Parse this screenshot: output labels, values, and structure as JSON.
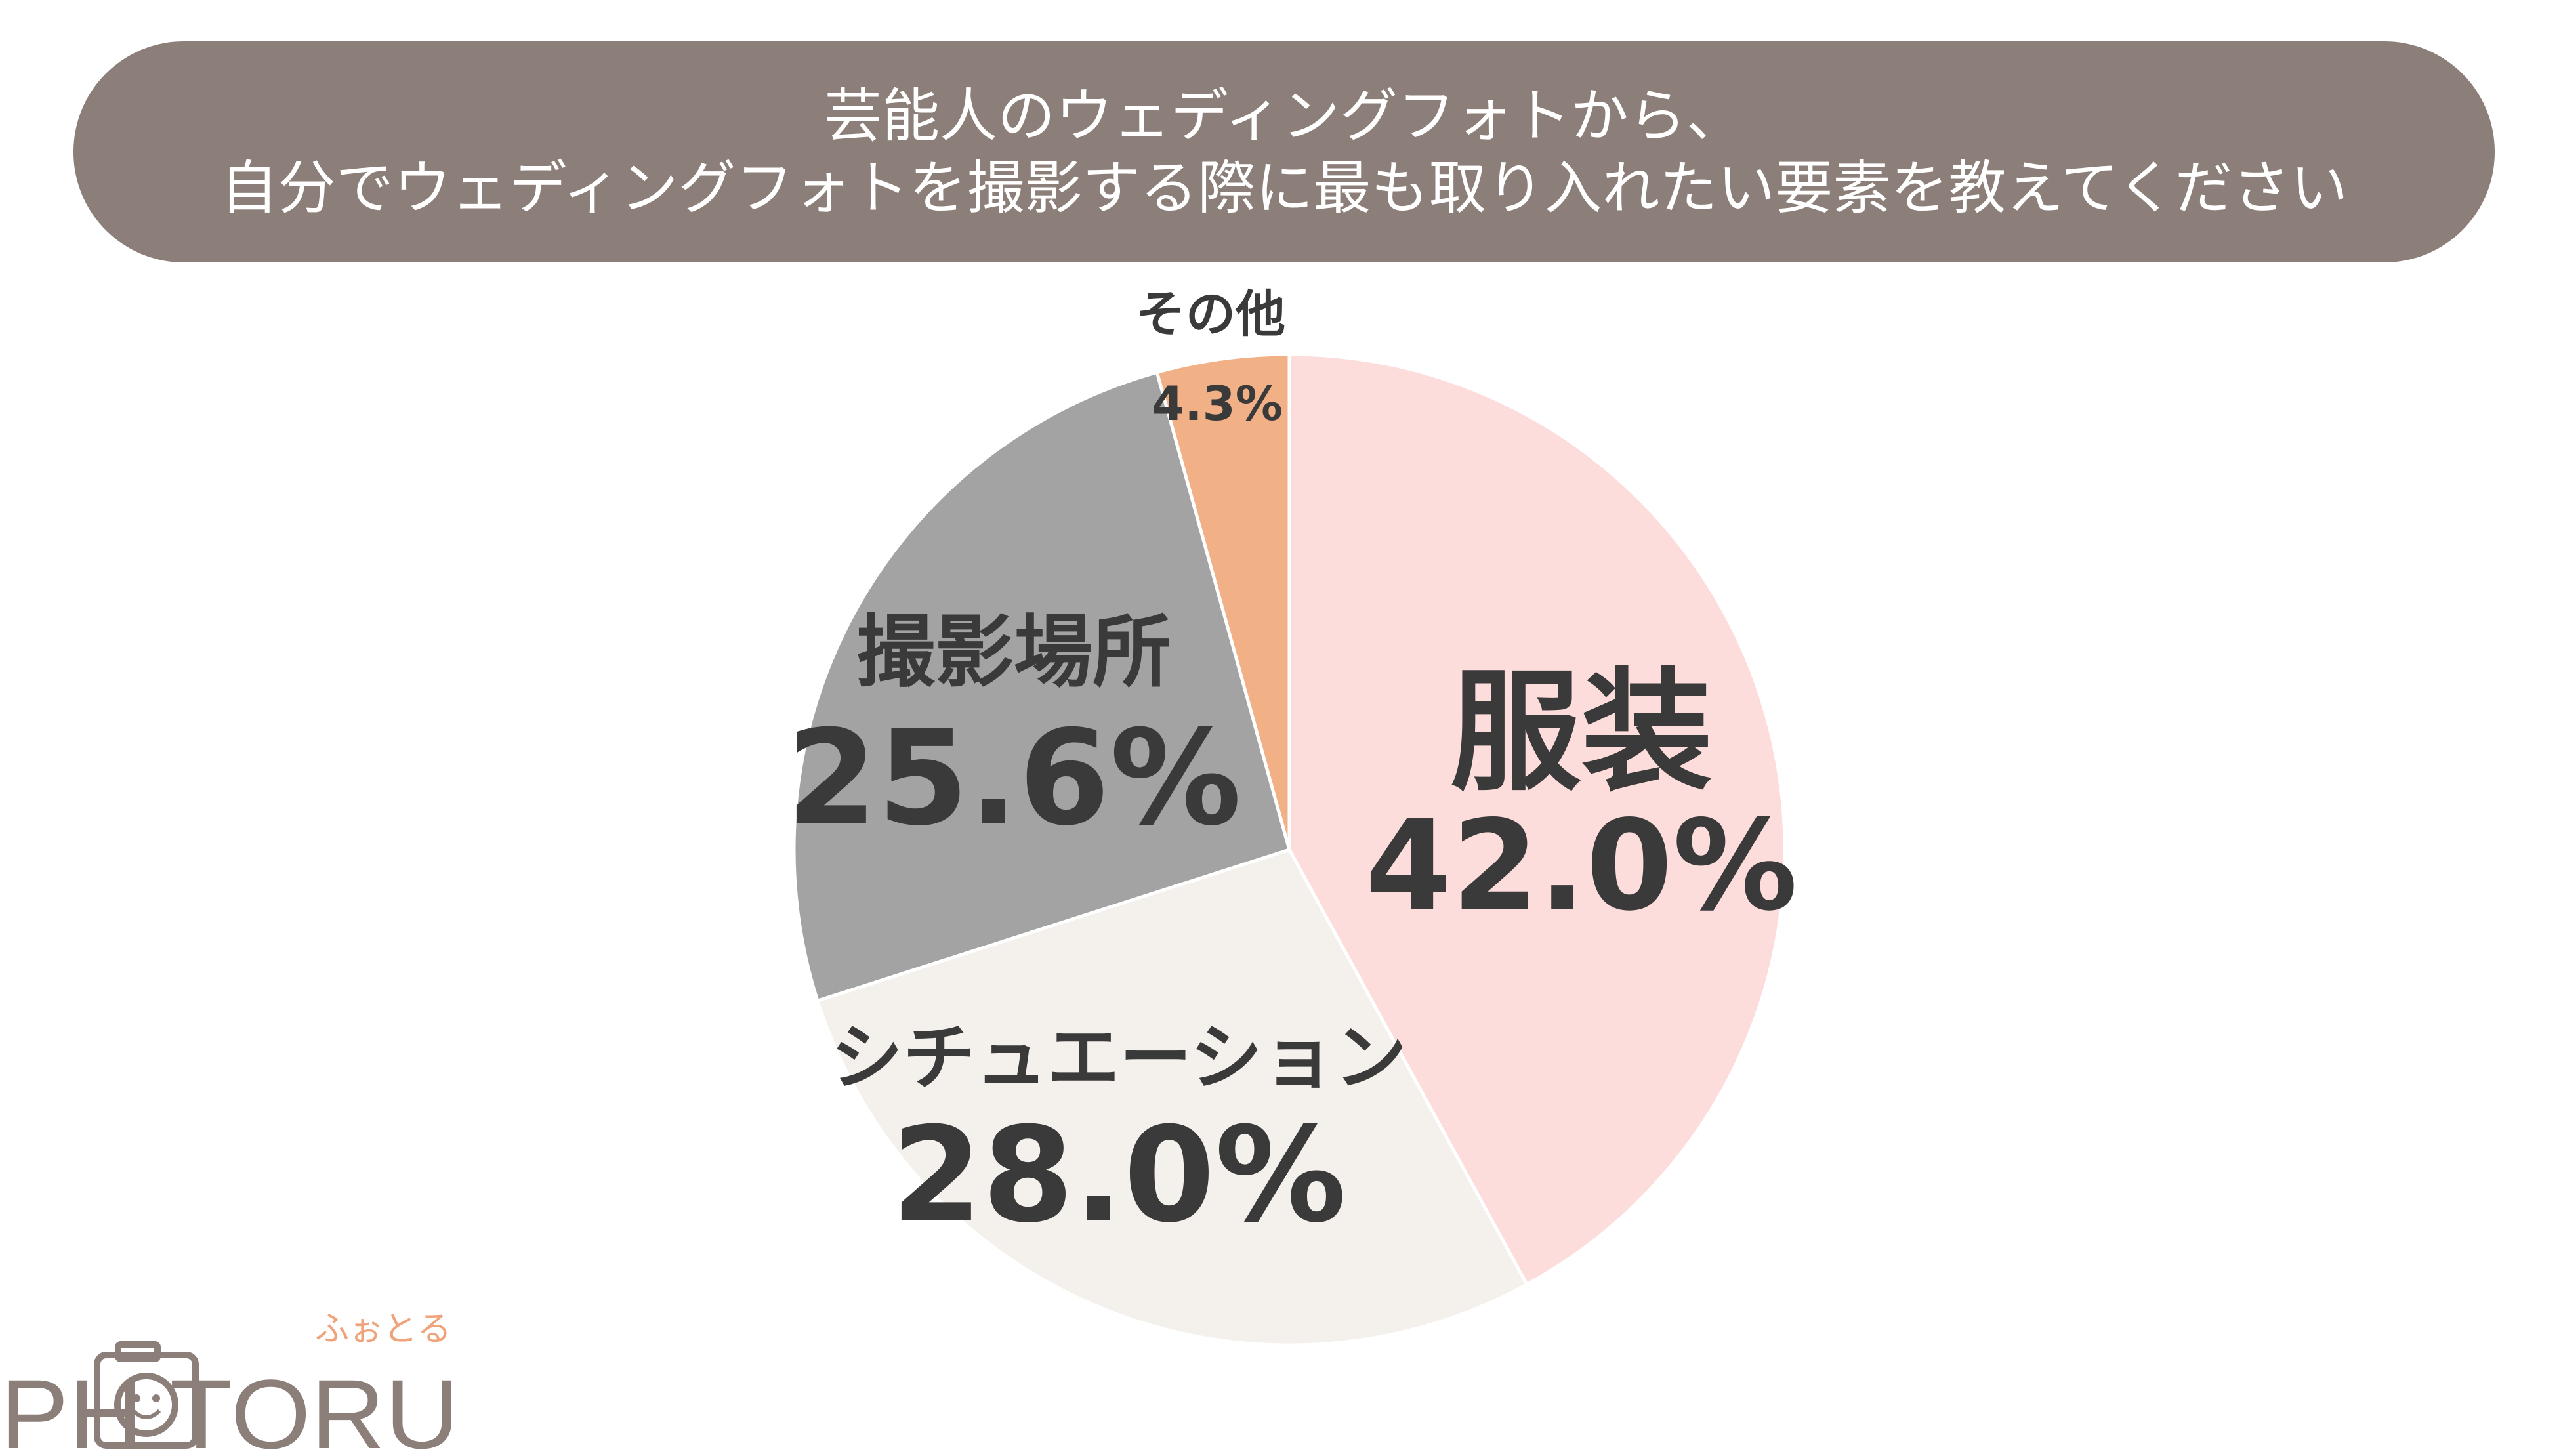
{
  "title": {
    "line1": "芸能人のウェディングフォトから、",
    "line2": "自分でウェディングフォトを撮影する際に最も取り入れたい要素を教えてください"
  },
  "chart_data": {
    "type": "pie",
    "title": "芸能人のウェディングフォトから、自分でウェディングフォトを撮影する際に最も取り入れたい要素を教えてください",
    "start": "12 o'clock, clockwise",
    "slices": [
      {
        "label": "服装",
        "value": 42.0,
        "display": "42.0%",
        "color": "#fddcdc"
      },
      {
        "label": "シチュエーション",
        "value": 28.0,
        "display": "28.0%",
        "color": "#f4f0ec"
      },
      {
        "label": "撮影場所",
        "value": 25.6,
        "display": "25.6%",
        "color": "#a3a3a3"
      },
      {
        "label": "その他",
        "value": 4.3,
        "display": "4.3%",
        "color": "#f2b087"
      }
    ]
  },
  "logo": {
    "text": "PHOTORU",
    "kana": "ふぉとる"
  }
}
